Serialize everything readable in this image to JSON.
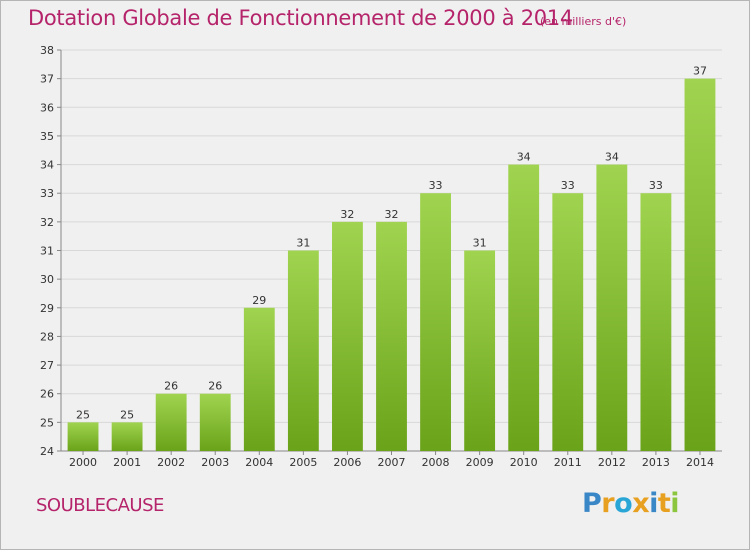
{
  "title": "Dotation Globale de Fonctionnement de 2000 à 2014",
  "subtitle": "(en milliers d'€)",
  "commune": "SOUBLECAUSE",
  "logo": {
    "letters": [
      "P",
      "r",
      "o",
      "x",
      "i",
      "t",
      "i"
    ],
    "colors": [
      "#3a87c8",
      "#e8a020",
      "#2aa6d6",
      "#e8a020",
      "#3a87c8",
      "#e8a020",
      "#8cc63f"
    ]
  },
  "colors": {
    "accent": "#b5246a",
    "bar_top": "#a0d450",
    "bar_bottom": "#6aa31a",
    "background": "#f0f0f0"
  },
  "chart_data": {
    "type": "bar",
    "title": "Dotation Globale de Fonctionnement de 2000 à 2014",
    "subtitle": "(en milliers d'€)",
    "categories": [
      "2000",
      "2001",
      "2002",
      "2003",
      "2004",
      "2005",
      "2006",
      "2007",
      "2008",
      "2009",
      "2010",
      "2011",
      "2012",
      "2013",
      "2014"
    ],
    "values": [
      25,
      25,
      26,
      26,
      29,
      31,
      32,
      32,
      33,
      31,
      34,
      33,
      34,
      33,
      37
    ],
    "ylim": [
      24,
      38
    ],
    "yticks": [
      24,
      25,
      26,
      27,
      28,
      29,
      30,
      31,
      32,
      33,
      34,
      35,
      36,
      37,
      38
    ],
    "xlabel": "",
    "ylabel": "",
    "grid": true,
    "data_labels": true
  }
}
